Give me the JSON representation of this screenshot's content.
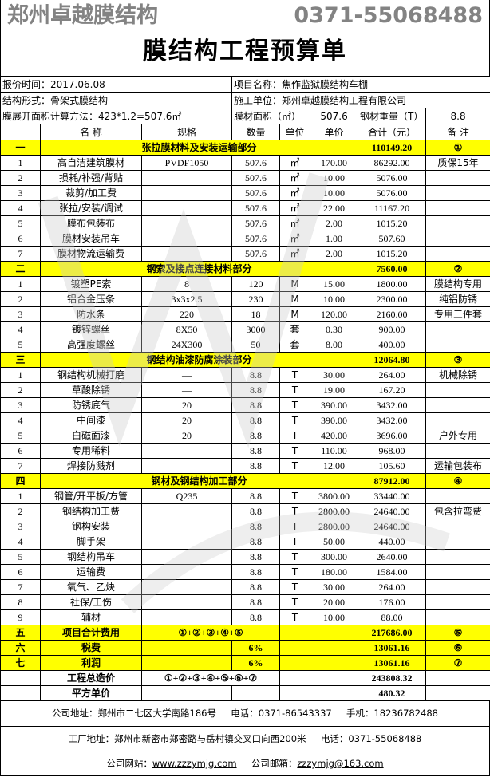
{
  "title": "膜结构工程预算单",
  "info": {
    "quote_time": "报价时间：2017.06.08",
    "project_name": "项目名称：焦作监狱膜结构车棚",
    "structure": "结构形式：骨架式膜结构",
    "builder": "施工单位：郑州卓越膜结构工程有限公司",
    "area_method": "膜展开面积计算方法：423*1.2=507.6㎡",
    "membrane_area_label": "膜材面积（㎡）",
    "membrane_area": "507.6",
    "steel_weight_label": "钢材重量（T）",
    "steel_weight": "8.8"
  },
  "headers": [
    "",
    "名 称",
    "规格",
    "数量",
    "单位",
    "单价",
    "合计（元）",
    "备 注"
  ],
  "sections": [
    {
      "no": "一",
      "title": "张拉膜材料及安装运输部分",
      "total": "110149.20",
      "mark": "①",
      "rows": [
        [
          "1",
          "高自洁建筑膜材",
          "PVDF1050",
          "507.6",
          "㎡",
          "170.00",
          "86292.00",
          "质保15年"
        ],
        [
          "2",
          "损耗/补强/背贴",
          "—",
          "507.6",
          "㎡",
          "10.00",
          "5076.00",
          ""
        ],
        [
          "3",
          "裁剪/加工费",
          "",
          "507.6",
          "㎡",
          "10.00",
          "5076.00",
          ""
        ],
        [
          "4",
          "张拉/安装/调试",
          "",
          "507.6",
          "㎡",
          "22.00",
          "11167.20",
          ""
        ],
        [
          "5",
          "膜布包装布",
          "",
          "507.6",
          "㎡",
          "2.00",
          "1015.20",
          ""
        ],
        [
          "6",
          "膜材安装吊车",
          "",
          "507.6",
          "㎡",
          "1.00",
          "507.60",
          ""
        ],
        [
          "7",
          "膜材物流运输费",
          "",
          "507.6",
          "㎡",
          "2.00",
          "1015.20",
          ""
        ]
      ]
    },
    {
      "no": "二",
      "title": "钢索及接点连接材料部分",
      "total": "7560.00",
      "mark": "②",
      "rows": [
        [
          "1",
          "镀塑PE索",
          "8",
          "120",
          "M",
          "15.00",
          "1800.00",
          "膜结构专用"
        ],
        [
          "2",
          "铝合金压条",
          "3x3x2.5",
          "230",
          "M",
          "10.00",
          "2300.00",
          "纯铝防锈"
        ],
        [
          "3",
          "防水条",
          "220",
          "18",
          "M",
          "120.00",
          "2160.00",
          "专用三件套"
        ],
        [
          "4",
          "镀锌螺丝",
          "8X50",
          "3000",
          "套",
          "0.30",
          "900.00",
          ""
        ],
        [
          "5",
          "高强度螺丝",
          "24X300",
          "50",
          "套",
          "8.00",
          "400.00",
          ""
        ]
      ]
    },
    {
      "no": "三",
      "title": "钢结构油漆防腐涂装部分",
      "total": "12064.80",
      "mark": "③",
      "rows": [
        [
          "1",
          "钢结构机械打磨",
          "—",
          "8.8",
          "T",
          "30.00",
          "264.00",
          "机械除锈"
        ],
        [
          "2",
          "草酸除锈",
          "—",
          "8.8",
          "T",
          "19.00",
          "167.20",
          ""
        ],
        [
          "3",
          "防锈底气",
          "20",
          "8.8",
          "T",
          "390.00",
          "3432.00",
          ""
        ],
        [
          "4",
          "中间漆",
          "20",
          "8.8",
          "T",
          "390.00",
          "3432.00",
          ""
        ],
        [
          "5",
          "白磁面漆",
          "20",
          "8.8",
          "T",
          "420.00",
          "3696.00",
          "户外专用"
        ],
        [
          "6",
          "专用稀料",
          "—",
          "8.8",
          "T",
          "110.00",
          "968.00",
          ""
        ],
        [
          "7",
          "焊接防溅剂",
          "—",
          "8.8",
          "T",
          "12.00",
          "105.60",
          "运输包装布"
        ]
      ]
    },
    {
      "no": "四",
      "title": "钢材及钢结构加工部分",
      "total": "87912.00",
      "mark": "④",
      "rows": [
        [
          "1",
          "钢管/开平板/方管",
          "Q235",
          "8.8",
          "T",
          "3800.00",
          "33440.00",
          ""
        ],
        [
          "2",
          "钢结构加工费",
          "",
          "8.8",
          "T",
          "2800.00",
          "24640.00",
          "包含拉弯费"
        ],
        [
          "3",
          "钢构安装",
          "",
          "8.8",
          "T",
          "2800.00",
          "24640.00",
          ""
        ],
        [
          "4",
          "脚手架",
          "",
          "8.8",
          "T",
          "50.00",
          "440.00",
          ""
        ],
        [
          "5",
          "钢结构吊车",
          "—",
          "8.8",
          "T",
          "300.00",
          "2640.00",
          ""
        ],
        [
          "6",
          "运输费",
          "",
          "8.8",
          "T",
          "180.00",
          "1584.00",
          ""
        ],
        [
          "7",
          "氧气、乙炔",
          "",
          "8.8",
          "T",
          "30.00",
          "264.00",
          ""
        ],
        [
          "8",
          "社保/工伤",
          "",
          "8.8",
          "T",
          "20.00",
          "176.00",
          ""
        ],
        [
          "9",
          "辅材",
          "",
          "8.8",
          "T",
          "10.00",
          "88.00",
          ""
        ]
      ]
    }
  ],
  "summary": [
    {
      "no": "五",
      "name": "项目合计费用",
      "formula": "①+②+③+④+⑤",
      "rate": "",
      "total": "217686.00",
      "mark": "⑤",
      "yellow": true
    },
    {
      "no": "六",
      "name": "税费",
      "formula": "",
      "rate": "6%",
      "total": "13061.16",
      "mark": "⑥",
      "yellow": true
    },
    {
      "no": "七",
      "name": "利润",
      "formula": "",
      "rate": "6%",
      "total": "13061.16",
      "mark": "⑦",
      "yellow": true
    },
    {
      "no": "",
      "name": "工程总造价",
      "formula": "①+②+③+④+⑤+⑥+⑦",
      "rate": "",
      "total": "243808.32",
      "mark": "",
      "yellow": false
    },
    {
      "no": "",
      "name": "平方单价",
      "formula": "",
      "rate": "",
      "total": "480.32",
      "mark": "",
      "yellow": false
    }
  ],
  "footer": {
    "address": "公司地址：郑州市二七区大学南路186号",
    "phone1": "电话：0371-86543337",
    "mobile": "手机：18236782488",
    "factory": "工厂地址：郑州市新密市郑密路与岳村镇交叉口向西200米",
    "phone2": "电话：0371-55068488",
    "website_label": "公司网站：",
    "website": "www.zzzymjg.com",
    "email_label": "公司邮箱：",
    "email": "zzzymjg@163.com"
  },
  "watermark": {
    "line1": "郑州卓越膜结构",
    "line2": "0371-55068488"
  },
  "colors": {
    "section_bg": "#ffff00"
  }
}
